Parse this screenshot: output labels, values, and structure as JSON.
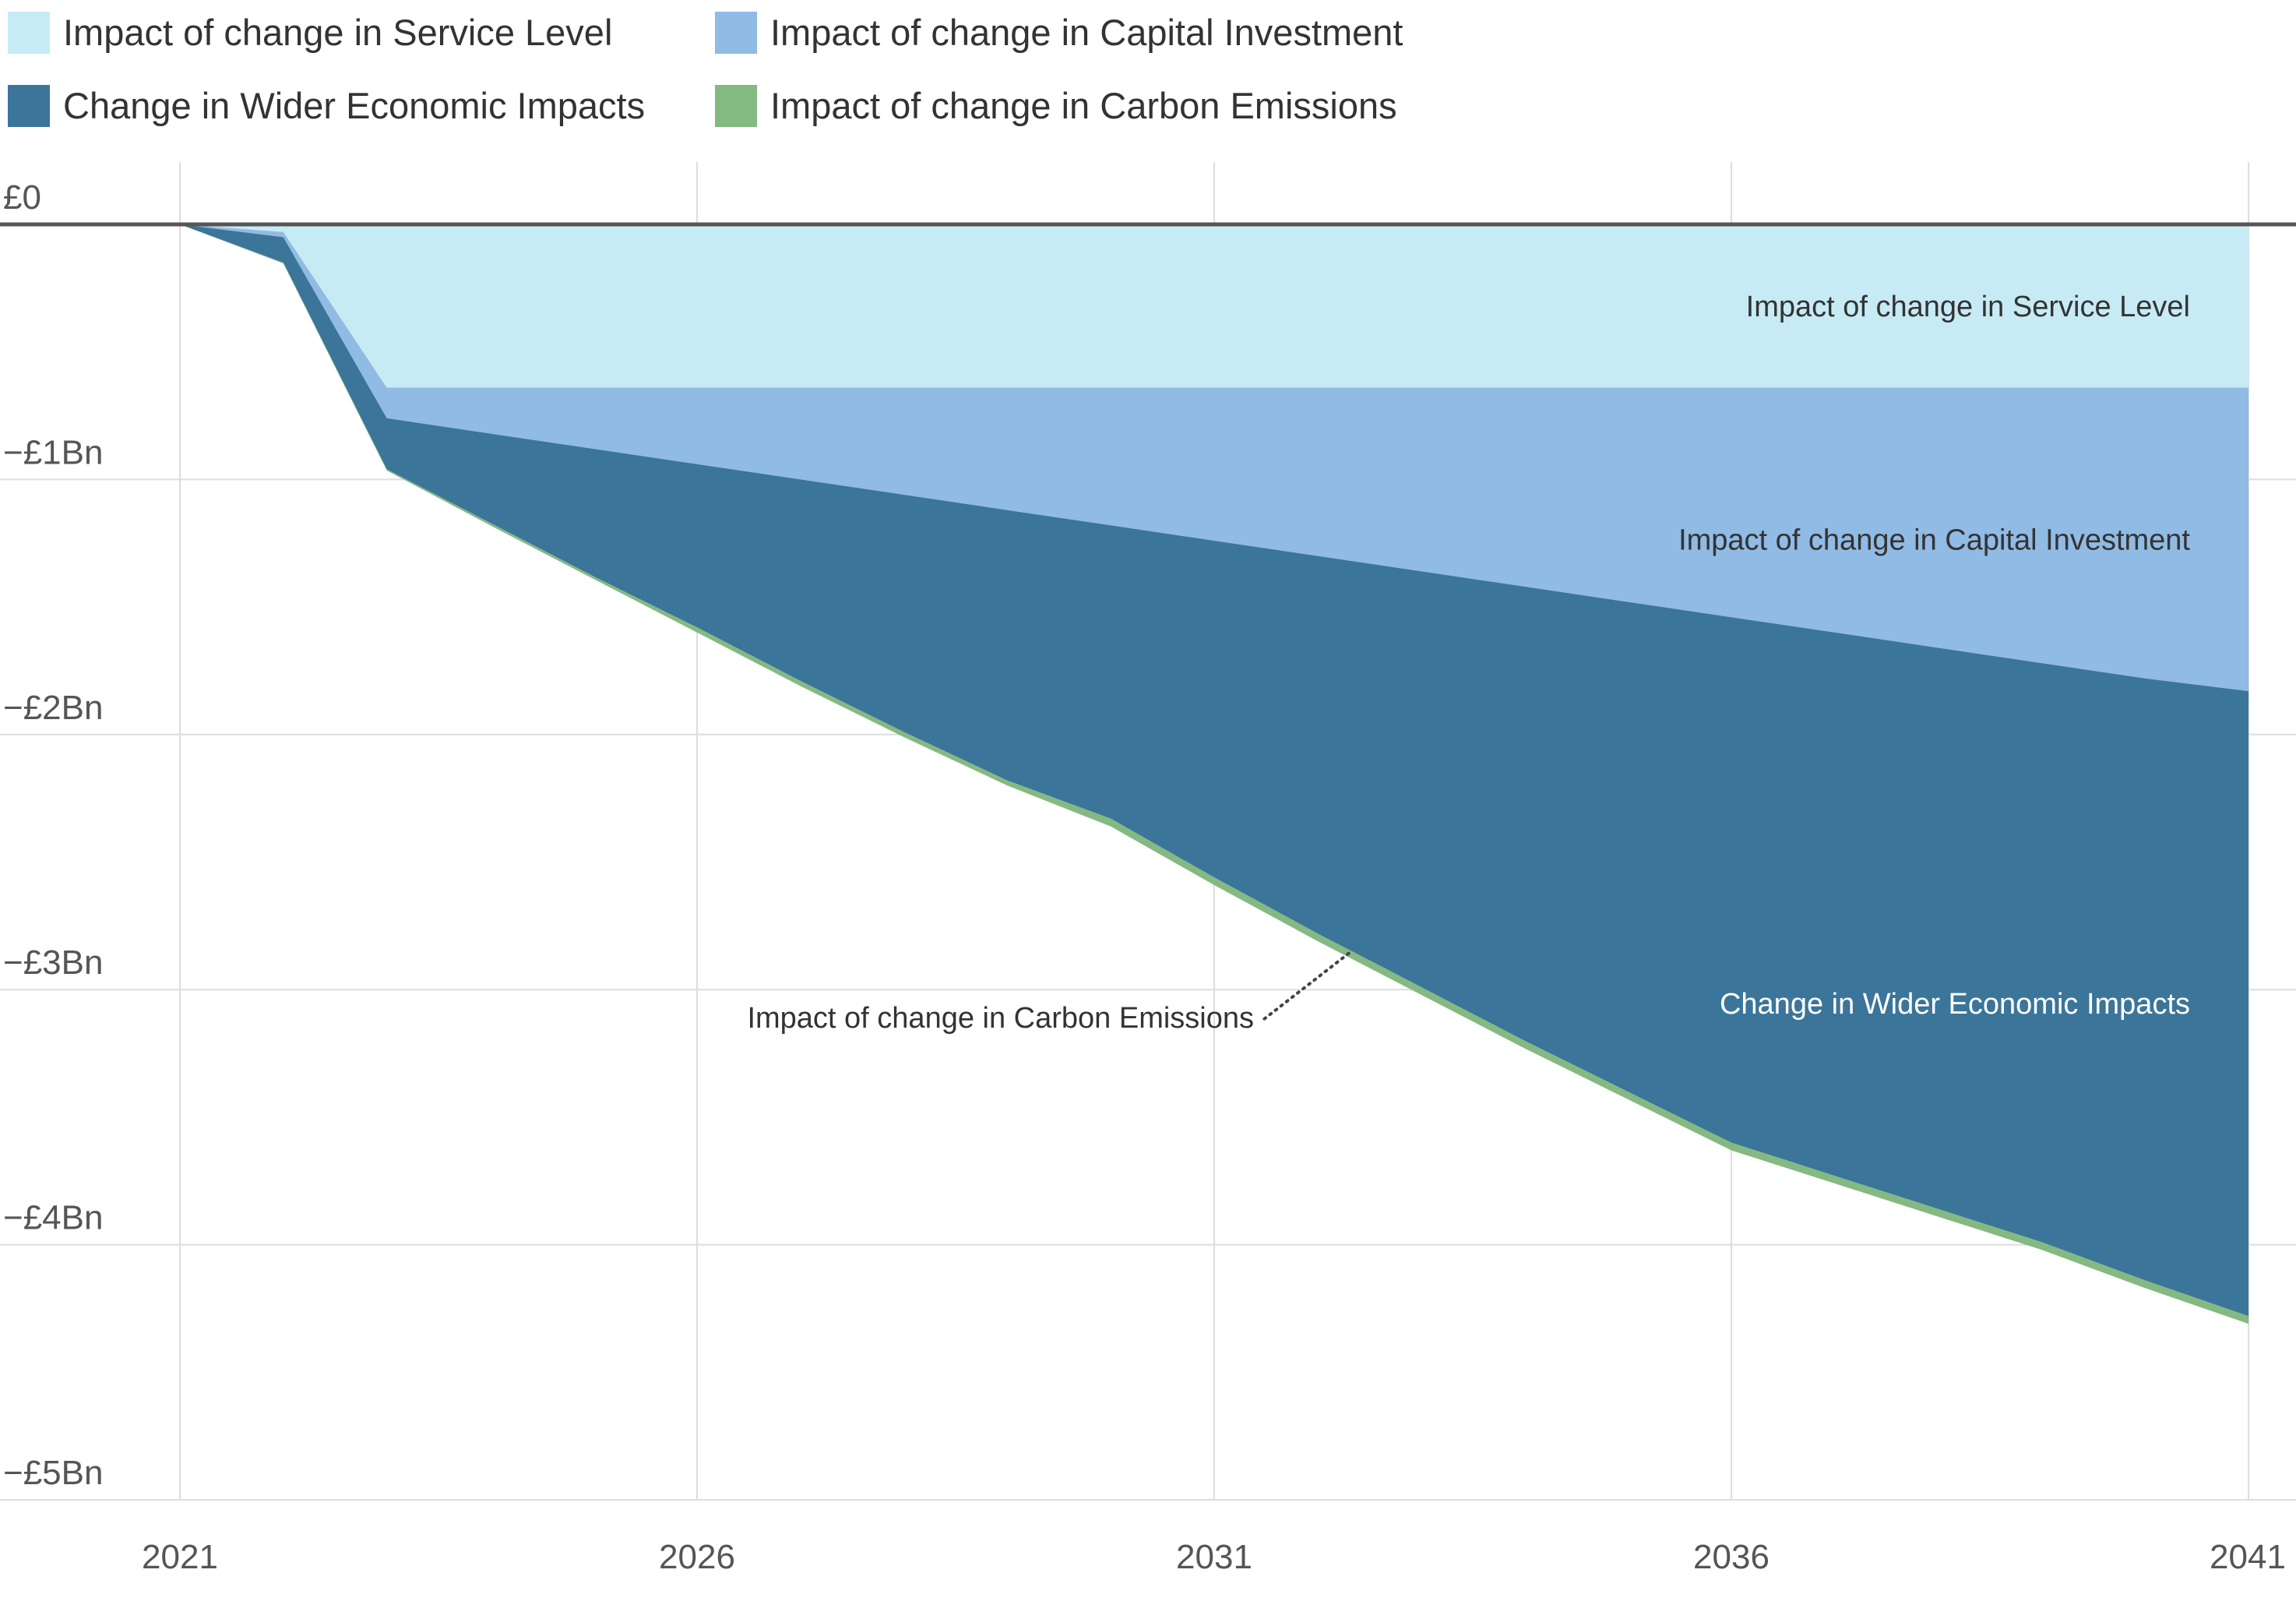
{
  "chart_data": {
    "type": "area",
    "stacked": true,
    "title": "",
    "xlabel": "",
    "ylabel": "",
    "x": [
      2021,
      2022,
      2023,
      2024,
      2025,
      2026,
      2027,
      2028,
      2029,
      2030,
      2031,
      2032,
      2033,
      2034,
      2035,
      2036,
      2037,
      2038,
      2039,
      2040,
      2041
    ],
    "xlim": [
      2021,
      2041
    ],
    "ylim": [
      -5,
      0
    ],
    "y_unit": "£Bn",
    "x_ticks": [
      2021,
      2026,
      2031,
      2036,
      2041
    ],
    "x_tick_labels": [
      "2021",
      "2026",
      "2031",
      "2036",
      "2041"
    ],
    "y_ticks": [
      0,
      -1,
      -2,
      -3,
      -4,
      -5
    ],
    "y_tick_labels": [
      "£0",
      "−£1Bn",
      "−£2Bn",
      "−£3Bn",
      "−£4Bn",
      "−£5Bn"
    ],
    "grid": true,
    "legend_position": "top-left",
    "series": [
      {
        "name": "Impact of change in Service Level",
        "color": "#c6ebf5",
        "label_color": "#333333",
        "values": [
          0,
          -0.03,
          -0.64,
          -0.64,
          -0.64,
          -0.64,
          -0.64,
          -0.64,
          -0.64,
          -0.64,
          -0.64,
          -0.64,
          -0.64,
          -0.64,
          -0.64,
          -0.64,
          -0.64,
          -0.64,
          -0.64,
          -0.64,
          -0.64
        ]
      },
      {
        "name": "Impact of change in Capital Investment",
        "color": "#90bbe4",
        "label_color": "#333333",
        "values": [
          0,
          -0.02,
          -0.12,
          -0.18,
          -0.24,
          -0.3,
          -0.36,
          -0.42,
          -0.48,
          -0.54,
          -0.6,
          -0.66,
          -0.72,
          -0.78,
          -0.84,
          -0.9,
          -0.96,
          -1.02,
          -1.08,
          -1.14,
          -1.19
        ]
      },
      {
        "name": "Change in Wider Economic Impacts",
        "color": "#3b7599",
        "label_color": "#ffffff",
        "values": [
          0,
          -0.1,
          -0.2,
          -0.35,
          -0.5,
          -0.64,
          -0.79,
          -0.93,
          -1.06,
          -1.15,
          -1.32,
          -1.48,
          -1.63,
          -1.78,
          -1.92,
          -2.06,
          -2.13,
          -2.2,
          -2.27,
          -2.36,
          -2.45
        ]
      },
      {
        "name": "Impact of change in Carbon Emissions",
        "color": "#84b982",
        "label_color": "#333333",
        "values": [
          0,
          -0.003,
          -0.005,
          -0.01,
          -0.01,
          -0.02,
          -0.02,
          -0.02,
          -0.02,
          -0.03,
          -0.03,
          -0.03,
          -0.03,
          -0.03,
          -0.03,
          -0.03,
          -0.03,
          -0.03,
          -0.03,
          -0.03,
          -0.03
        ]
      }
    ]
  }
}
